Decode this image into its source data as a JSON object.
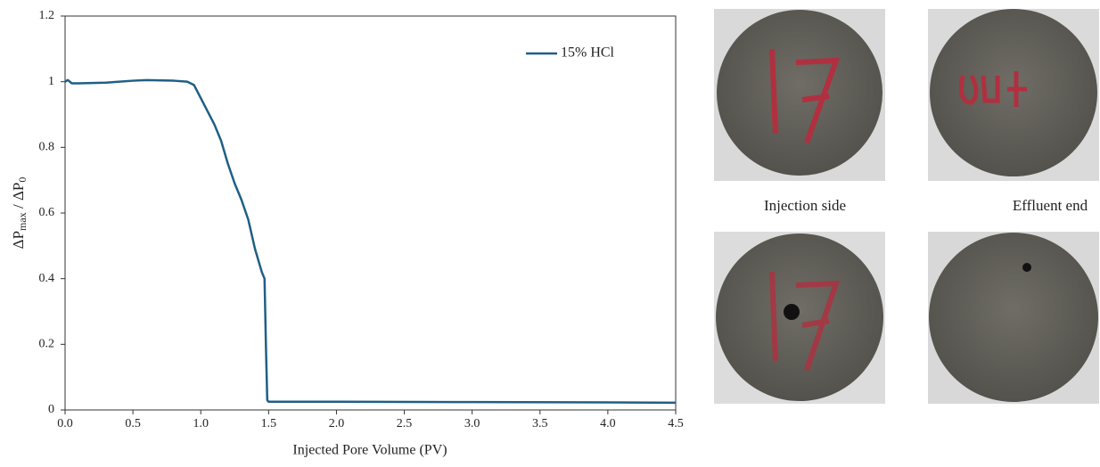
{
  "chart_data": {
    "type": "line",
    "x_label": "Injected  Pore Volume (PV)",
    "y_label": [
      "ΔP",
      "max",
      " / ΔP",
      "0"
    ],
    "x": [
      0,
      0.02,
      0.05,
      0.1,
      0.3,
      0.5,
      0.6,
      0.8,
      0.9,
      0.95,
      1.0,
      1.05,
      1.1,
      1.15,
      1.2,
      1.25,
      1.3,
      1.35,
      1.4,
      1.45,
      1.47,
      1.48,
      1.49,
      1.5,
      2.0,
      3.0,
      4.0,
      4.5
    ],
    "series": [
      {
        "name": "15% HCl",
        "color": "#1f5f86",
        "values": [
          1.0,
          1.005,
          0.995,
          0.995,
          0.997,
          1.003,
          1.005,
          1.003,
          1.0,
          0.99,
          0.95,
          0.91,
          0.87,
          0.82,
          0.75,
          0.69,
          0.64,
          0.58,
          0.49,
          0.42,
          0.4,
          0.2,
          0.03,
          0.025,
          0.025,
          0.024,
          0.023,
          0.022
        ]
      }
    ],
    "xlim": [
      0,
      4.5
    ],
    "xticks": [
      {
        "value": 0,
        "label": "0.0"
      },
      0.5,
      {
        "value": 1,
        "label": "1.0"
      },
      1.5,
      {
        "value": 2,
        "label": "2.0"
      },
      2.5,
      {
        "value": 3,
        "label": "3.0"
      },
      3.5,
      {
        "value": 4,
        "label": "4.0"
      },
      4.5
    ],
    "ylim": [
      0,
      1.2
    ],
    "yticks": [
      0,
      0.2,
      0.4,
      0.6,
      0.8,
      1,
      1.2
    ],
    "grid": false,
    "legend": "top-right"
  },
  "photos": {
    "captions": [
      "Injection side",
      "Effluent end"
    ]
  }
}
